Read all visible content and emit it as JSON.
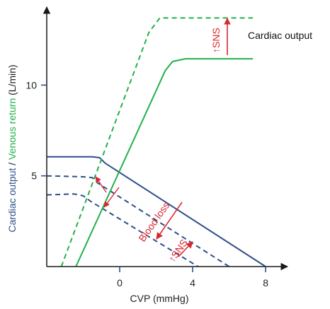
{
  "chart_data": {
    "type": "line",
    "xlabel": "CVP (mmHg)",
    "ylabel_parts": {
      "cardiac_output": "Cardiac output",
      "separator": " / ",
      "venous_return": "Venous return",
      "unit": " (L/min)"
    },
    "x_ticks": [
      0,
      4,
      8
    ],
    "y_ticks": [
      5,
      10
    ],
    "xlim": [
      -4,
      9.2
    ],
    "ylim": [
      0,
      14.3
    ],
    "colors": {
      "cardiac_output": "#2e4f8a",
      "venous_return": "#22b04c",
      "annotation": "#d7282f",
      "axis": "#1a1a1a"
    },
    "series": [
      {
        "name": "Cardiac output",
        "role": "cardiac-output-curve",
        "color": "#2e4f8a",
        "dash": false,
        "points": [
          [
            -4,
            6.05
          ],
          [
            -2.5,
            6.05
          ],
          [
            -1.5,
            6.05
          ],
          [
            -1.1,
            6.0
          ],
          [
            -0.8,
            5.7
          ],
          [
            8,
            0
          ]
        ]
      },
      {
        "role": "cardiac-output-curve-reduced",
        "color": "#2e4f8a",
        "dash": true,
        "points": [
          [
            -4,
            5.0
          ],
          [
            -2,
            4.95
          ],
          [
            -1.5,
            4.9
          ],
          [
            -1.2,
            4.6
          ],
          [
            6,
            0
          ]
        ]
      },
      {
        "role": "cardiac-output-curve-further-reduced",
        "color": "#2e4f8a",
        "dash": true,
        "points": [
          [
            -4,
            3.95
          ],
          [
            -2.5,
            4.0
          ],
          [
            -2.0,
            3.9
          ],
          [
            -1.6,
            3.6
          ],
          [
            4.3,
            0
          ]
        ]
      },
      {
        "role": "venous-return-curve",
        "color": "#22b04c",
        "dash": false,
        "points": [
          [
            -2.4,
            0
          ],
          [
            2.5,
            10.8
          ],
          [
            2.9,
            11.3
          ],
          [
            3.6,
            11.45
          ],
          [
            7.3,
            11.45
          ]
        ]
      },
      {
        "role": "venous-return-curve-sns",
        "color": "#22b04c",
        "dash": true,
        "points": [
          [
            -3.2,
            0
          ],
          [
            1.6,
            12.9
          ],
          [
            2.2,
            13.7
          ],
          [
            3.0,
            13.7
          ],
          [
            7.3,
            13.7
          ]
        ]
      }
    ],
    "annotations": {
      "cardiac_output_label": "Cardiac output",
      "blood_loss": "Blood loss",
      "sns_top": "↑SNS",
      "sns_bottom": "↑SNS"
    }
  }
}
